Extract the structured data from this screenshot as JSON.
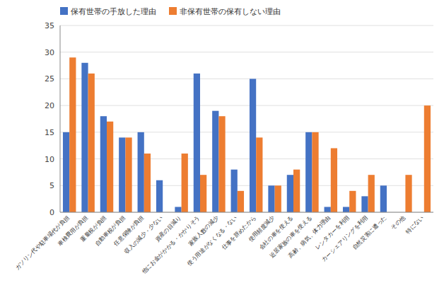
{
  "chart_data": {
    "type": "bar",
    "categories": [
      "ガソリン代や駐車場代が負担",
      "車検費用が負担",
      "重量税が負担",
      "自動車税が負担",
      "任意保険が負担",
      "収入の減少・少ない",
      "資産の目減り",
      "他にお金がかかる・かかりそう",
      "家族人数の減少",
      "使う用途がなくなる・ない",
      "仕事を辞めたから",
      "使用頻度減少",
      "会社の車を使える",
      "近居家族の車を使える",
      "高齢、病気、体力理由",
      "レンタカーを利用",
      "カーシェアリングを利用",
      "自然災害に遭った",
      "その他",
      "特にない"
    ],
    "series": [
      {
        "name": "保有世帯の手放した理由",
        "color": "#4472C4",
        "values": [
          15,
          28,
          18,
          14,
          15,
          6,
          1,
          26,
          19,
          8,
          25,
          5,
          7,
          15,
          1,
          1,
          3,
          5,
          0,
          0
        ]
      },
      {
        "name": "非保有世帯の保有しない理由",
        "color": "#ED7D31",
        "values": [
          29,
          26,
          17,
          14,
          11,
          0,
          11,
          7,
          18,
          4,
          14,
          5,
          8,
          15,
          12,
          4,
          7,
          0,
          7,
          20
        ]
      }
    ],
    "ylim": [
      0,
      35
    ],
    "yticks": [
      0,
      5,
      10,
      15,
      20,
      25,
      30,
      35
    ],
    "grid": true,
    "legend": "upper left"
  }
}
